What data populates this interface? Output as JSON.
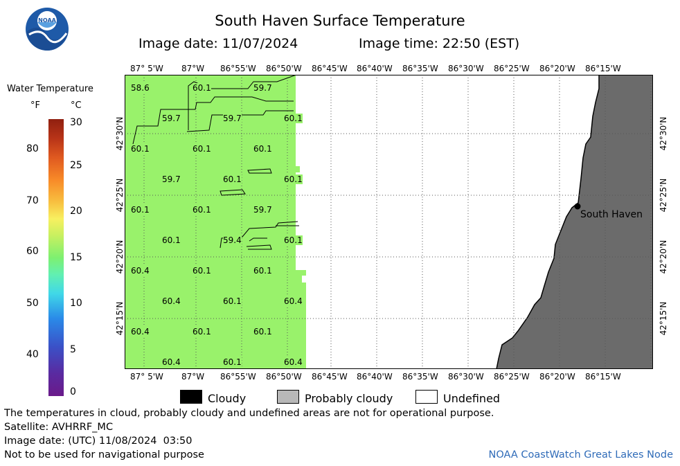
{
  "header": {
    "title": "South Haven Surface Temperature",
    "image_date": "Image date: 11/07/2024",
    "image_time": "Image time: 22:50 (EST)",
    "logo_text": "NOAA"
  },
  "colorbar": {
    "title": "Water Temperature",
    "unit_f": "°F",
    "unit_c": "°C",
    "f_ticks": [
      "80",
      "70",
      "60",
      "50",
      "40"
    ],
    "c_ticks": [
      "30",
      "25",
      "20",
      "15",
      "10",
      "5",
      "0"
    ]
  },
  "map": {
    "lon_labels": [
      "87° 5'W",
      "87°W",
      "86°55'W",
      "86°50'W",
      "86°45'W",
      "86°40'W",
      "86°35'W",
      "86°30'W",
      "86°25'W",
      "86°20'W",
      "86°15'W"
    ],
    "lat_labels": [
      "42°30'N",
      "42°25'N",
      "42°20'N",
      "42°15'N"
    ],
    "city": "South Haven",
    "temperatures": [
      [
        "58.6",
        "60.1",
        "59.7"
      ],
      [
        "59.7",
        "59.7",
        "60.1"
      ],
      [
        "60.1",
        "60.1",
        "60.1"
      ],
      [
        "59.7",
        "60.1",
        "60.1"
      ],
      [
        "60.1",
        "60.1",
        "59.7"
      ],
      [
        "60.1",
        "59.4",
        "60.1"
      ],
      [
        "60.4",
        "60.1",
        "60.1"
      ],
      [
        "60.4",
        "60.1",
        "60.4"
      ],
      [
        "60.4",
        "60.1",
        "60.1"
      ],
      [
        "60.4",
        "60.1",
        "60.4"
      ]
    ],
    "colors": {
      "water": "#99f26b",
      "land": "#6b6b6b"
    }
  },
  "legend": {
    "cloudy": "Cloudy",
    "probably_cloudy": "Probably cloudy",
    "undefined": "Undefined",
    "colors": {
      "cloudy": "#000000",
      "probably_cloudy": "#b8b8b8",
      "undefined": "#ffffff"
    }
  },
  "notes": {
    "line1": "The temperatures in cloud, probably cloudy and undefined areas are not for operational purpose.",
    "line2": "Satellite: AVHRRF_MC",
    "line3": "Image date: (UTC) 11/08/2024  03:50",
    "line4": "Not to be used for navigational purpose",
    "credit": "NOAA CoastWatch Great Lakes Node"
  }
}
